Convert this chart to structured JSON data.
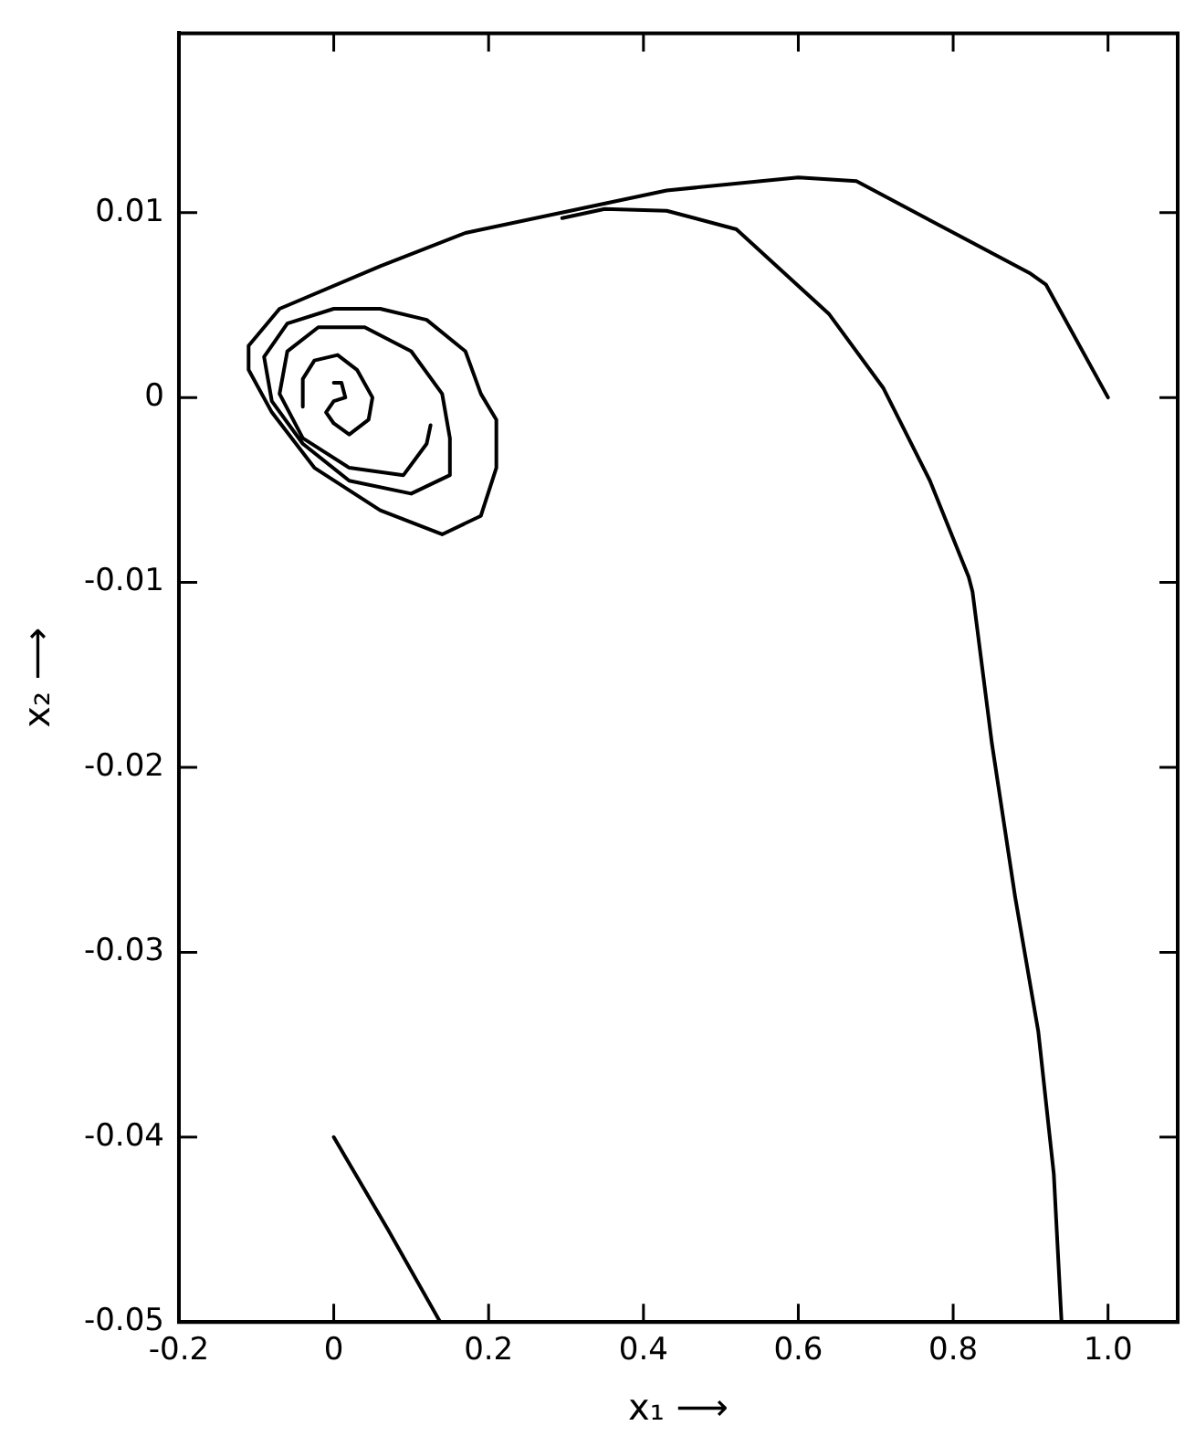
{
  "chart_data": {
    "type": "line",
    "xlabel": "x₁ ⟶",
    "ylabel": "x₂ ⟶",
    "xlim": [
      -0.2,
      1.09
    ],
    "ylim": [
      -0.05,
      0.0197
    ],
    "xticks": [
      -0.2,
      0,
      0.2,
      0.4,
      0.6,
      0.8,
      {
        "value": 1,
        "label": "1.0"
      }
    ],
    "yticks": [
      0.01,
      0,
      -0.01,
      -0.02,
      -0.03,
      -0.04,
      -0.05
    ],
    "grid": false,
    "legend": false,
    "marker": "none",
    "line_style": "solid",
    "series": [
      {
        "color": "#000000",
        "x": [
          1.0,
          0.92,
          0.9,
          0.675,
          0.6,
          0.43,
          0.17,
          0.06,
          -0.07,
          -0.11,
          -0.11,
          -0.08,
          -0.025,
          0.06,
          0.14,
          0.19,
          0.21,
          0.21,
          0.19,
          0.17,
          0.12,
          0.06,
          0.0,
          -0.06,
          -0.09,
          -0.08,
          -0.04,
          0.02,
          0.1,
          0.15,
          0.15,
          0.14,
          0.1,
          0.04,
          -0.02,
          -0.06,
          -0.07,
          -0.04,
          0.02,
          0.09,
          0.12,
          0.125
        ],
        "values": [
          0.0,
          0.0061,
          0.0067,
          0.0117,
          0.0119,
          0.0112,
          0.0089,
          0.0071,
          0.0048,
          0.0028,
          0.0015,
          -0.0008,
          -0.0038,
          -0.0061,
          -0.0074,
          -0.0064,
          -0.0038,
          -0.0012,
          0.0002,
          0.0025,
          0.0042,
          0.0048,
          0.0048,
          0.004,
          0.0022,
          -0.0002,
          -0.0025,
          -0.0045,
          -0.0052,
          -0.0042,
          -0.0022,
          0.0002,
          0.0025,
          0.0038,
          0.0038,
          0.0025,
          0.0002,
          -0.0022,
          -0.0038,
          -0.0042,
          -0.0025,
          -0.0015
        ]
      },
      {
        "color": "#000000",
        "x": [
          -0.04,
          -0.04,
          -0.025,
          0.005,
          0.03,
          0.05,
          0.045,
          0.02,
          0.0,
          -0.01,
          0.0,
          0.015,
          0.01,
          0.0
        ],
        "values": [
          -0.0005,
          0.001,
          0.002,
          0.0023,
          0.0015,
          0.0,
          -0.0012,
          -0.002,
          -0.0014,
          -0.0008,
          -0.0002,
          0.0,
          0.0008,
          0.0008
        ]
      },
      {
        "color": "#000000",
        "x": [
          0.94,
          0.93,
          0.91,
          0.88,
          0.85,
          0.825,
          0.82,
          0.77,
          0.71,
          0.64,
          0.52,
          0.43,
          0.35,
          0.295
        ],
        "values": [
          -0.05,
          -0.042,
          -0.0343,
          -0.027,
          -0.0187,
          -0.0105,
          -0.0097,
          -0.0045,
          0.0005,
          0.0045,
          0.0091,
          0.0101,
          0.0102,
          0.0097
        ]
      },
      {
        "color": "#000000",
        "x": [
          0.0,
          0.07,
          0.1375
        ],
        "values": [
          -0.04,
          -0.045,
          -0.05
        ]
      }
    ]
  }
}
